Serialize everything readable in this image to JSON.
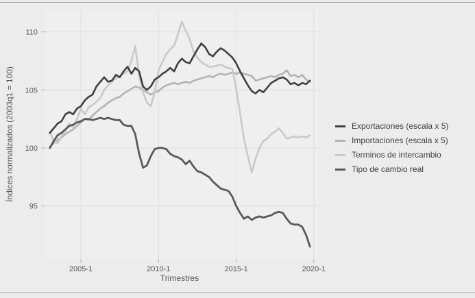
{
  "figure": {
    "bg": "#ececec",
    "plot_bg": "#efefef",
    "grid_color": "#dedede",
    "tick_color": "#b3b3b3",
    "text_color": "#545454",
    "border_color": "#a9a9a9"
  },
  "chart_data": {
    "type": "line",
    "title": "",
    "xlabel": "Trimestres",
    "ylabel": "Índices normalizados (2003q1 = 100)",
    "x_start": "2003q1",
    "x_end": "2019q4",
    "x_step": "quarter",
    "ylim": [
      91,
      112
    ],
    "grid": true,
    "legend_position": "right",
    "yticks": [
      95,
      100,
      105,
      110
    ],
    "xticks": [
      {
        "q": 8,
        "label": "2005-1"
      },
      {
        "q": 28,
        "label": "2010-1"
      },
      {
        "q": 48,
        "label": "2015-1"
      },
      {
        "q": 68,
        "label": "2020-1"
      }
    ],
    "series": [
      {
        "id": "exportaciones",
        "name": "Exportaciones (escala x 5)",
        "color": "#3f3f3f",
        "width": 2.6,
        "z": 4,
        "values": [
          101.3,
          101.7,
          102.1,
          102.3,
          102.9,
          103.1,
          102.9,
          103.4,
          103.6,
          104.1,
          104.4,
          104.6,
          105.3,
          105.7,
          106.1,
          105.7,
          105.8,
          106.3,
          106.1,
          106.6,
          107.0,
          106.4,
          106.9,
          106.6,
          105.3,
          105.0,
          105.3,
          105.9,
          106.1,
          106.4,
          106.6,
          106.9,
          106.6,
          107.3,
          107.7,
          107.4,
          107.3,
          107.9,
          108.5,
          109.0,
          108.7,
          108.1,
          107.9,
          108.3,
          108.6,
          108.4,
          108.1,
          107.8,
          107.3,
          106.6,
          106.0,
          105.4,
          104.9,
          104.7,
          105.0,
          104.8,
          105.2,
          105.6,
          105.8,
          106.0,
          106.1,
          105.9,
          105.5,
          105.6,
          105.4,
          105.6,
          105.5,
          105.8
        ]
      },
      {
        "id": "importaciones",
        "name": "Importaciones (escala x 5)",
        "color": "#b3b3b3",
        "width": 2.6,
        "z": 1,
        "values": [
          100.1,
          100.4,
          100.7,
          100.9,
          101.2,
          101.4,
          101.6,
          101.9,
          102.2,
          102.5,
          102.4,
          102.8,
          103.1,
          103.4,
          103.6,
          103.9,
          104.1,
          104.3,
          104.4,
          104.7,
          104.9,
          105.1,
          105.3,
          105.2,
          105.0,
          104.8,
          104.6,
          104.8,
          104.9,
          105.2,
          105.4,
          105.5,
          105.6,
          105.5,
          105.6,
          105.7,
          105.6,
          105.8,
          105.9,
          106.0,
          106.1,
          106.2,
          106.1,
          106.3,
          106.4,
          106.3,
          106.4,
          106.5,
          106.4,
          106.5,
          106.4,
          106.3,
          106.2,
          105.8,
          105.9,
          106.0,
          106.1,
          106.2,
          106.1,
          106.3,
          106.4,
          106.7,
          106.2,
          106.3,
          106.1,
          106.3,
          105.9,
          105.7
        ]
      },
      {
        "id": "terminos-de-intercambio",
        "name": "Terminos de intercambio",
        "color": "#c9c9c9",
        "width": 2.6,
        "z": 2,
        "values": [
          101.4,
          100.6,
          100.4,
          101.0,
          101.5,
          102.1,
          101.8,
          102.5,
          103.4,
          102.9,
          103.5,
          103.7,
          104.0,
          104.3,
          105.0,
          105.4,
          105.7,
          106.0,
          106.2,
          106.4,
          106.6,
          107.5,
          108.8,
          106.2,
          104.8,
          103.9,
          103.6,
          104.8,
          106.7,
          107.4,
          108.1,
          108.5,
          108.8,
          109.8,
          110.9,
          110.1,
          109.4,
          108.3,
          107.8,
          107.4,
          107.2,
          107.0,
          107.0,
          107.1,
          107.2,
          107.0,
          106.9,
          106.8,
          105.1,
          103.0,
          100.8,
          99.3,
          97.9,
          99.1,
          100.0,
          100.6,
          100.8,
          101.2,
          101.4,
          101.7,
          101.3,
          100.8,
          100.9,
          101.0,
          100.9,
          101.0,
          100.9,
          101.1
        ]
      },
      {
        "id": "tipo-de-cambio-real",
        "name": "Tipo de cambio real",
        "color": "#595959",
        "width": 2.8,
        "z": 3,
        "values": [
          100.0,
          100.6,
          101.1,
          101.3,
          101.6,
          101.9,
          102.0,
          102.2,
          102.3,
          102.5,
          102.5,
          102.4,
          102.5,
          102.6,
          102.5,
          102.6,
          102.5,
          102.4,
          102.4,
          102.0,
          101.9,
          101.9,
          101.2,
          99.5,
          98.3,
          98.5,
          99.3,
          99.9,
          100.0,
          100.0,
          99.9,
          99.5,
          99.3,
          99.2,
          99.0,
          98.6,
          98.9,
          98.4,
          98.0,
          97.9,
          97.7,
          97.5,
          97.1,
          96.8,
          96.5,
          96.4,
          96.3,
          95.8,
          95.0,
          94.4,
          93.9,
          94.1,
          93.8,
          94.0,
          94.1,
          94.0,
          94.1,
          94.2,
          94.4,
          94.5,
          94.4,
          93.9,
          93.5,
          93.4,
          93.4,
          93.2,
          92.5,
          91.5
        ]
      }
    ]
  }
}
